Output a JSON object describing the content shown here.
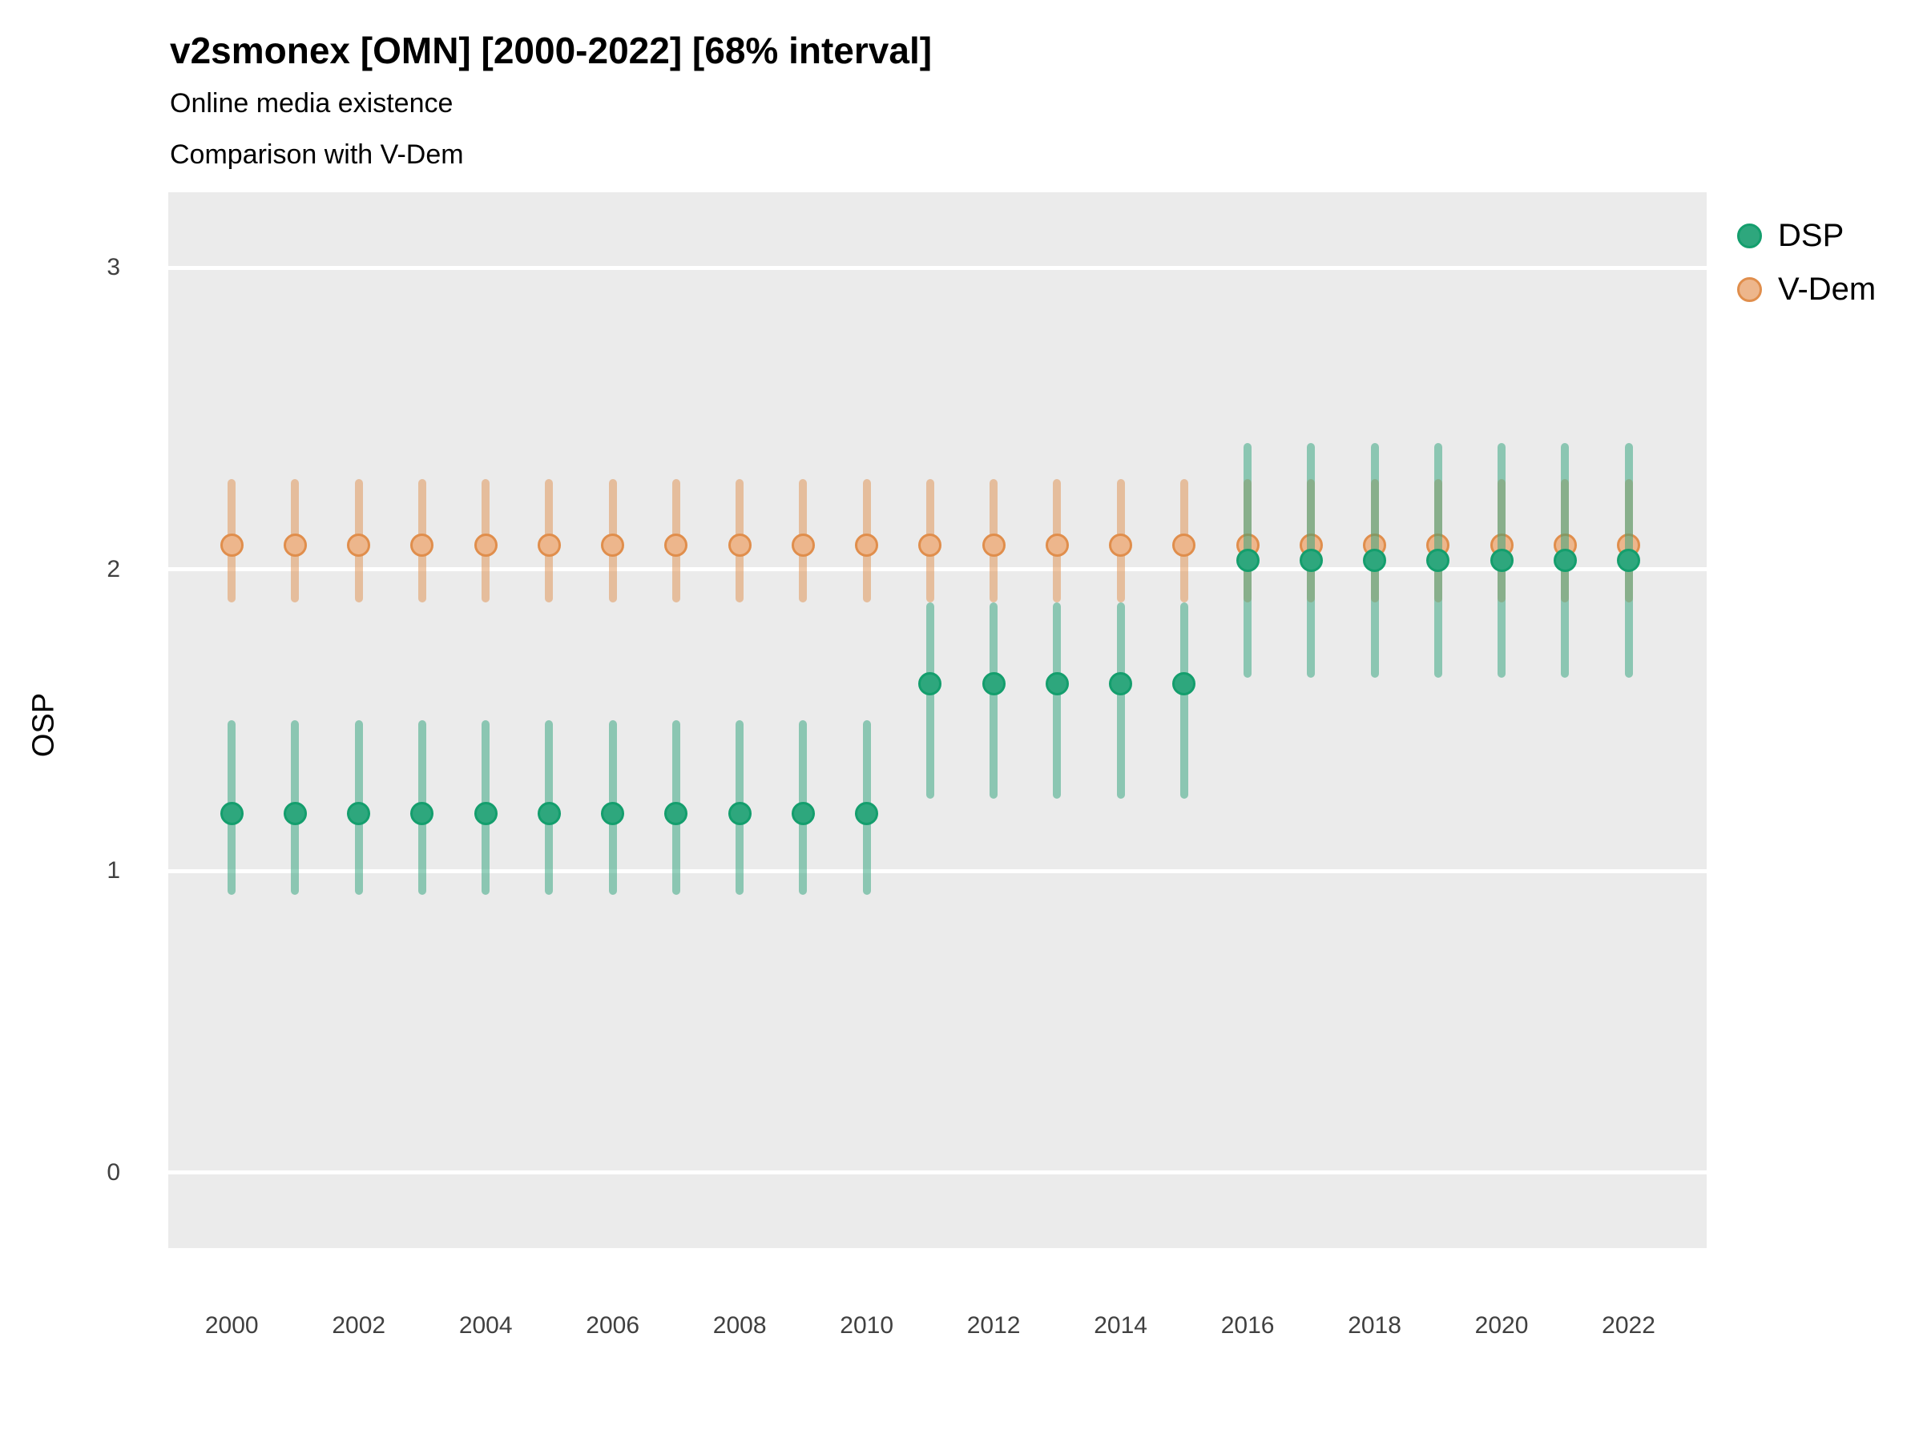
{
  "header": {
    "title": "v2smonex [OMN] [2000-2022] [68% interval]",
    "subtitle1": "Online media existence",
    "subtitle2": "Comparison with V-Dem"
  },
  "axes": {
    "y_title": "OSP",
    "y_ticks": [
      0,
      1,
      2,
      3
    ],
    "x_ticks": [
      2000,
      2002,
      2004,
      2006,
      2008,
      2010,
      2012,
      2014,
      2016,
      2018,
      2020,
      2022
    ]
  },
  "colors": {
    "panel_background": "#EBEBEB",
    "gridline": "#FFFFFF",
    "tick_label": "#404040",
    "title": "#000000"
  },
  "chart_data": {
    "type": "scatter",
    "subtype": "pointrange",
    "interval": "68%",
    "title": "v2smonex [OMN] [2000-2022] [68% interval]",
    "subtitle": "Online media existence / Comparison with V-Dem",
    "xlabel": "",
    "ylabel": "OSP",
    "xlim": [
      1999.0,
      2023.23
    ],
    "ylim": [
      -0.25,
      3.25
    ],
    "grid": "major-horizontal-only",
    "legend_position": "top-right",
    "x": [
      2000,
      2001,
      2002,
      2003,
      2004,
      2005,
      2006,
      2007,
      2008,
      2009,
      2010,
      2011,
      2012,
      2013,
      2014,
      2015,
      2016,
      2017,
      2018,
      2019,
      2020,
      2021,
      2022
    ],
    "series": [
      {
        "name": "DSP",
        "fill": "#2EA77D",
        "stroke": "#149E6D",
        "bar": "rgba(43,162,122,0.5)",
        "values": [
          1.19,
          1.19,
          1.19,
          1.19,
          1.19,
          1.19,
          1.19,
          1.19,
          1.19,
          1.19,
          1.19,
          1.62,
          1.62,
          1.62,
          1.62,
          1.62,
          2.03,
          2.03,
          2.03,
          2.03,
          2.03,
          2.03,
          2.03
        ],
        "lo": [
          0.92,
          0.92,
          0.92,
          0.92,
          0.92,
          0.92,
          0.92,
          0.92,
          0.92,
          0.92,
          0.92,
          1.24,
          1.24,
          1.24,
          1.24,
          1.24,
          1.64,
          1.64,
          1.64,
          1.64,
          1.64,
          1.64,
          1.64
        ],
        "hi": [
          1.5,
          1.5,
          1.5,
          1.5,
          1.5,
          1.5,
          1.5,
          1.5,
          1.5,
          1.5,
          1.5,
          1.89,
          1.89,
          1.89,
          1.89,
          1.89,
          2.42,
          2.42,
          2.42,
          2.42,
          2.42,
          2.42,
          2.42
        ]
      },
      {
        "name": "V-Dem",
        "fill": "#EDB68C",
        "stroke": "#E08E4C",
        "bar": "rgba(224,144,77,0.5)",
        "values": [
          2.08,
          2.08,
          2.08,
          2.08,
          2.08,
          2.08,
          2.08,
          2.08,
          2.08,
          2.08,
          2.08,
          2.08,
          2.08,
          2.08,
          2.08,
          2.08,
          2.08,
          2.08,
          2.08,
          2.08,
          2.08,
          2.08,
          2.08
        ],
        "lo": [
          1.89,
          1.89,
          1.89,
          1.89,
          1.89,
          1.89,
          1.89,
          1.89,
          1.89,
          1.89,
          1.89,
          1.89,
          1.89,
          1.89,
          1.89,
          1.89,
          1.89,
          1.89,
          1.89,
          1.89,
          1.89,
          1.89,
          1.89
        ],
        "hi": [
          2.3,
          2.3,
          2.3,
          2.3,
          2.3,
          2.3,
          2.3,
          2.3,
          2.3,
          2.3,
          2.3,
          2.3,
          2.3,
          2.3,
          2.3,
          2.3,
          2.3,
          2.3,
          2.3,
          2.3,
          2.3,
          2.3,
          2.3
        ]
      }
    ]
  }
}
